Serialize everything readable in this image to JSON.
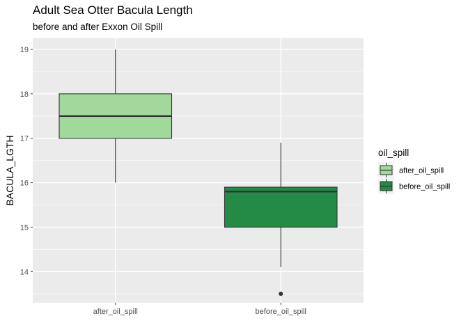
{
  "chart_data": {
    "type": "boxplot",
    "title": "Adult Sea Otter Bacula Length",
    "subtitle": "before and after Exxon Oil Spill",
    "xlabel": "",
    "ylabel": "BACULA_LGTH",
    "ylim": [
      13.3,
      19.25
    ],
    "yticks": [
      14,
      15,
      16,
      17,
      18,
      19
    ],
    "grid": true,
    "legend": {
      "title": "oil_spill",
      "position": "right",
      "entries": [
        {
          "label": "after_oil_spill",
          "color": "#a1d99b"
        },
        {
          "label": "before_oil_spill",
          "color": "#238b45"
        }
      ]
    },
    "categories": [
      "after_oil_spill",
      "before_oil_spill"
    ],
    "boxes": [
      {
        "category": "after_oil_spill",
        "min": 16.0,
        "q1": 17.0,
        "median": 17.5,
        "q3": 18.0,
        "max": 19.0,
        "outliers": [],
        "color": "#a1d99b"
      },
      {
        "category": "before_oil_spill",
        "min": 14.1,
        "q1": 15.0,
        "median": 15.8,
        "q3": 15.9,
        "max": 16.9,
        "outliers": [
          13.5
        ],
        "color": "#238b45"
      }
    ]
  },
  "colors": {
    "panel_background": "#ebebeb",
    "grid_major": "#ffffff",
    "box_outline": "#333333"
  }
}
